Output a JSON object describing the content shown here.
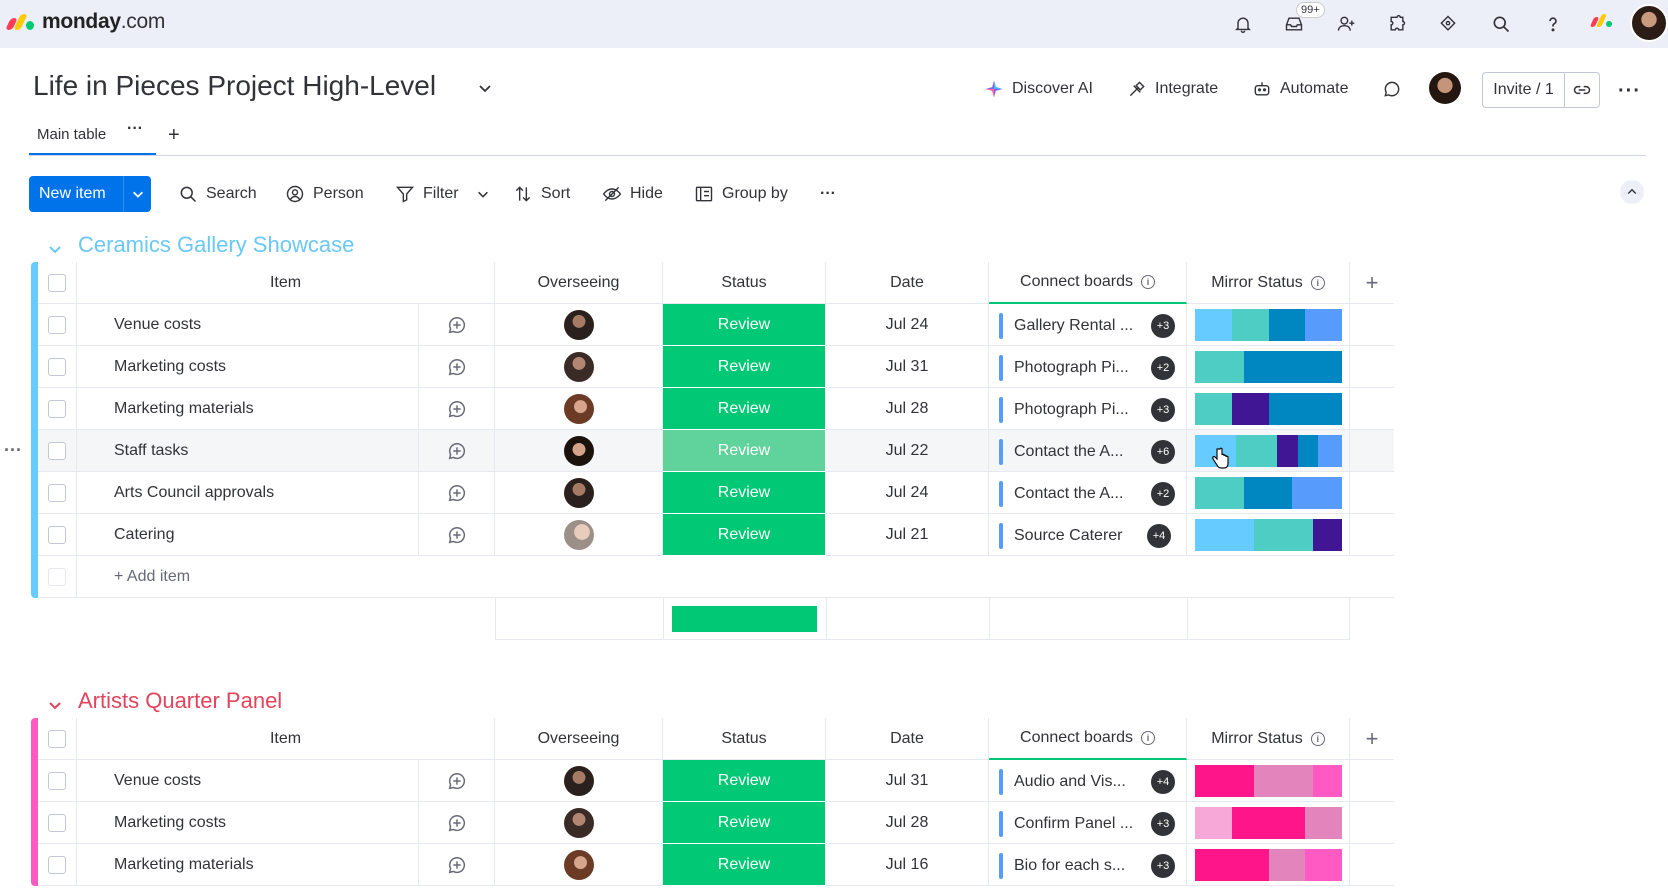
{
  "app": {
    "brand": "monday",
    "brand_suffix": ".com",
    "notif_badge": "99+"
  },
  "board": {
    "title": "Life in Pieces Project High-Level",
    "actions": {
      "discover_ai": "Discover AI",
      "integrate": "Integrate",
      "automate": "Automate",
      "invite": "Invite / 1"
    },
    "tabs": [
      {
        "label": "Main table"
      }
    ],
    "toolbar": {
      "new_item": "New item",
      "search": "Search",
      "person": "Person",
      "filter": "Filter",
      "sort": "Sort",
      "hide": "Hide",
      "group_by": "Group by"
    }
  },
  "columns": {
    "item": "Item",
    "overseeing": "Overseeing",
    "status": "Status",
    "date": "Date",
    "connect": "Connect boards",
    "mirror": "Mirror Status"
  },
  "colors": {
    "accent": "#0073ea",
    "status_review": "#00c875",
    "status_review_hover": "#5fd39b",
    "group1": "#66ccff",
    "group2": "#ff5ac4"
  },
  "groups": [
    {
      "title": "Ceramics Gallery Showcase",
      "color": "#66ccff",
      "title_color": "#69c8f5",
      "add_item": "+ Add item",
      "rows": [
        {
          "item": "Venue costs",
          "status": "Review",
          "date": "Jul 24",
          "connect": "Gallery Rental ...",
          "count": "+3",
          "mirror": [
            [
              "#66ccff",
              25
            ],
            [
              "#4ecdc4",
              25
            ],
            [
              "#0086c0",
              25
            ],
            [
              "#579bfc",
              25
            ]
          ]
        },
        {
          "item": "Marketing costs",
          "status": "Review",
          "date": "Jul 31",
          "connect": "Photograph Pi...",
          "count": "+2",
          "mirror": [
            [
              "#4ecdc4",
              33
            ],
            [
              "#0086c0",
              67
            ]
          ]
        },
        {
          "item": "Marketing materials",
          "status": "Review",
          "date": "Jul 28",
          "connect": "Photograph Pi...",
          "count": "+3",
          "mirror": [
            [
              "#4ecdc4",
              25
            ],
            [
              "#401694",
              25
            ],
            [
              "#0086c0",
              50
            ]
          ]
        },
        {
          "item": "Staff tasks",
          "status": "Review",
          "date": "Jul 22",
          "connect": "Contact the A...",
          "count": "+6",
          "mirror": [
            [
              "#66ccff",
              28
            ],
            [
              "#4ecdc4",
              28
            ],
            [
              "#401694",
              14
            ],
            [
              "#0086c0",
              14
            ],
            [
              "#579bfc",
              16
            ]
          ],
          "hover": true
        },
        {
          "item": "Arts Council approvals",
          "status": "Review",
          "date": "Jul 24",
          "connect": "Contact the A...",
          "count": "+2",
          "mirror": [
            [
              "#4ecdc4",
              33
            ],
            [
              "#0086c0",
              33
            ],
            [
              "#579bfc",
              34
            ]
          ]
        },
        {
          "item": "Catering",
          "status": "Review",
          "date": "Jul 21",
          "connect": "Source Caterer",
          "count": "+4",
          "mirror": [
            [
              "#66ccff",
              40
            ],
            [
              "#4ecdc4",
              40
            ],
            [
              "#401694",
              20
            ]
          ]
        }
      ]
    },
    {
      "title": "Artists Quarter Panel",
      "color": "#ff5ac4",
      "title_color": "#e2445c",
      "rows": [
        {
          "item": "Venue costs",
          "status": "Review",
          "date": "Jul 31",
          "connect": "Audio and Vis...",
          "count": "+4",
          "mirror": [
            [
              "#ff158a",
              40
            ],
            [
              "#e484bd",
              40
            ],
            [
              "#ff5ac4",
              20
            ]
          ]
        },
        {
          "item": "Marketing costs",
          "status": "Review",
          "date": "Jul 28",
          "connect": "Confirm Panel ...",
          "count": "+3",
          "mirror": [
            [
              "#f7a8d8",
              25
            ],
            [
              "#ff158a",
              50
            ],
            [
              "#e484bd",
              25
            ]
          ]
        },
        {
          "item": "Marketing materials",
          "status": "Review",
          "date": "Jul 16",
          "connect": "Bio for each s...",
          "count": "+3",
          "mirror": [
            [
              "#ff158a",
              50
            ],
            [
              "#e484bd",
              25
            ],
            [
              "#ff5ac4",
              25
            ]
          ]
        }
      ]
    }
  ]
}
